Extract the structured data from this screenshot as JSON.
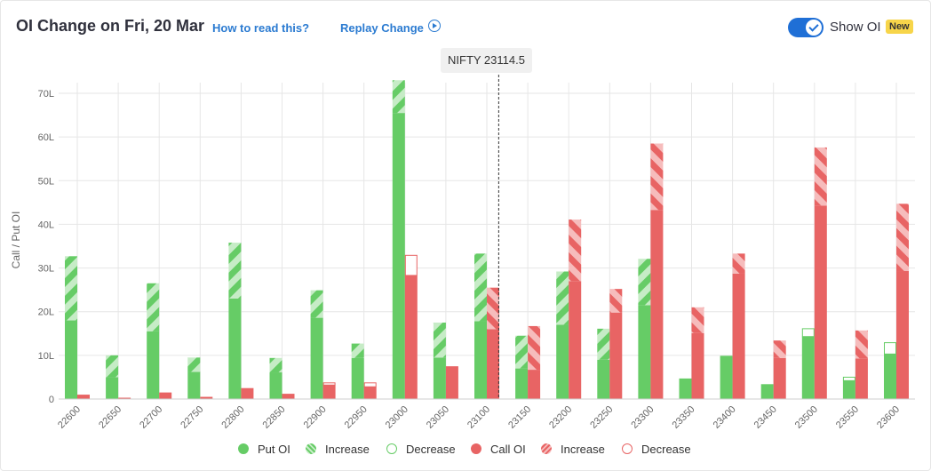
{
  "header": {
    "title": "OI Change on Fri, 20 Mar",
    "how_to_read": "How to read this?",
    "replay_label": "Replay Change",
    "replay_icon": "play-circle-icon",
    "show_oi_label": "Show OI",
    "show_oi_enabled": true,
    "badge": "New"
  },
  "tooltip": {
    "label": "NIFTY 23114.5"
  },
  "colors": {
    "put": "#66cc66",
    "put_light": "#a9e4a9",
    "call": "#e86464",
    "call_light": "#f4a8a8",
    "grid": "#e6e6e6",
    "axis_text": "#666666"
  },
  "legend": [
    {
      "label": "Put OI",
      "kind": "put-solid"
    },
    {
      "label": "Increase",
      "kind": "put-hatch"
    },
    {
      "label": "Decrease",
      "kind": "put-outline"
    },
    {
      "label": "Call OI",
      "kind": "call-solid"
    },
    {
      "label": "Increase",
      "kind": "call-hatch"
    },
    {
      "label": "Decrease",
      "kind": "call-outline"
    }
  ],
  "chart_data": {
    "type": "bar",
    "title": "OI Change on Fri, 20 Mar",
    "ylabel": "Call / Put OI",
    "ylim": [
      0,
      70
    ],
    "yticks": [
      0,
      10,
      20,
      30,
      40,
      50,
      60,
      70
    ],
    "ytick_labels": [
      "0",
      "10L",
      "20L",
      "30L",
      "40L",
      "50L",
      "60L",
      "70L"
    ],
    "spot_label": "NIFTY 23114.5",
    "spot": 23114.5,
    "categories": [
      "22600",
      "22650",
      "22700",
      "22750",
      "22800",
      "22850",
      "22900",
      "22950",
      "23000",
      "23050",
      "23100",
      "23150",
      "23200",
      "23250",
      "23300",
      "23350",
      "23400",
      "23450",
      "23500",
      "23550",
      "23600"
    ],
    "series": [
      {
        "name": "Put OI",
        "base": [
          18,
          5,
          15.5,
          6.2,
          23,
          6.1,
          18.6,
          9.4,
          65.5,
          9.5,
          17.8,
          7,
          17,
          9,
          21.5,
          4.4,
          9.6,
          3.4,
          14.3,
          4.2,
          10.3
        ],
        "increase": [
          14.7,
          5,
          11,
          3.3,
          12.8,
          3.3,
          6.3,
          3.3,
          7.5,
          8,
          15.5,
          7.5,
          12.2,
          7.1,
          10.6,
          0,
          0,
          0,
          0,
          0,
          0
        ],
        "decrease": [
          0,
          0,
          0,
          0,
          0,
          0,
          0,
          0,
          0,
          0,
          0,
          0,
          0,
          0,
          0,
          0.2,
          0.2,
          0,
          1.8,
          0.8,
          2.6
        ]
      },
      {
        "name": "Call OI",
        "base": [
          1,
          0.3,
          1.5,
          0.5,
          2.5,
          1.2,
          3.2,
          2.8,
          28.3,
          7.5,
          16,
          6.7,
          27,
          19.8,
          43.3,
          15.1,
          28.7,
          9.4,
          44.3,
          9.3,
          29.3
        ],
        "increase": [
          0,
          0,
          0,
          0,
          0,
          0,
          0,
          0,
          0,
          0,
          9.5,
          10,
          14.1,
          5.4,
          15.2,
          5.9,
          4.6,
          4,
          13.3,
          6.4,
          15.4
        ],
        "decrease": [
          0,
          0,
          0,
          0,
          0,
          0,
          0.5,
          0.9,
          4.6,
          0,
          0,
          0,
          0,
          0,
          0,
          0,
          0,
          0,
          0,
          0,
          0
        ]
      }
    ],
    "grid": true,
    "legend_position": "bottom"
  }
}
